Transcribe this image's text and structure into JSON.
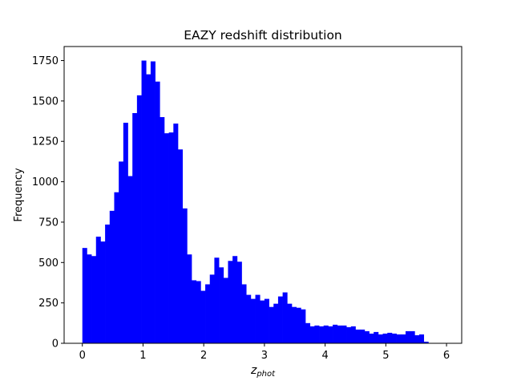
{
  "chart_data": {
    "type": "bar",
    "title": "EAZY redshift distribution",
    "xlabel": "z",
    "xlabel_sub": "phot",
    "ylabel": "Frequency",
    "xlim": [
      -0.3,
      6.25
    ],
    "ylim": [
      0,
      1837
    ],
    "xticks": [
      0,
      1,
      2,
      3,
      4,
      5,
      6
    ],
    "yticks": [
      0,
      250,
      500,
      750,
      1000,
      1250,
      1500,
      1750
    ],
    "grid": false,
    "bar_color": "#0000ff",
    "bin_start": 0.0,
    "bin_width": 0.075,
    "values": [
      590,
      550,
      540,
      660,
      630,
      735,
      820,
      935,
      1125,
      1365,
      1035,
      1425,
      1535,
      1750,
      1665,
      1745,
      1620,
      1400,
      1300,
      1305,
      1360,
      1200,
      835,
      550,
      390,
      385,
      325,
      365,
      425,
      530,
      470,
      405,
      510,
      540,
      505,
      365,
      300,
      275,
      300,
      265,
      275,
      225,
      245,
      290,
      315,
      245,
      225,
      220,
      210,
      125,
      105,
      110,
      105,
      110,
      105,
      115,
      110,
      110,
      100,
      105,
      85,
      85,
      75,
      60,
      70,
      55,
      60,
      65,
      60,
      55,
      55,
      75,
      75,
      50,
      55,
      10
    ]
  }
}
